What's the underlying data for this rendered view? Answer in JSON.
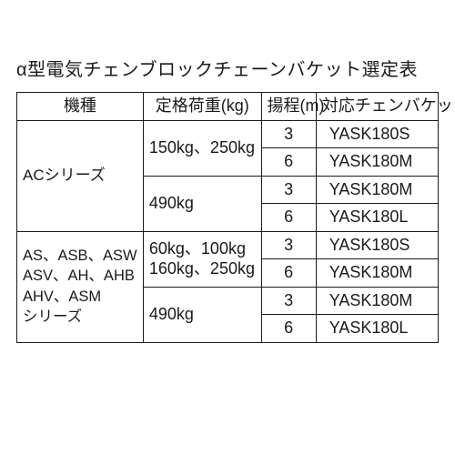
{
  "title": "α型電気チェンブロックチェーンバケット選定表",
  "headers": {
    "model": "機種",
    "load": "定格荷重(kg)",
    "lift": "揚程(m)",
    "bucket": "対応チェンバケット"
  },
  "group1": {
    "model": "ACシリーズ",
    "load_a": "150kg、250kg",
    "load_b": "490kg",
    "rows": [
      {
        "lift": "3",
        "bucket": "YASK180S"
      },
      {
        "lift": "6",
        "bucket": "YASK180M"
      },
      {
        "lift": "3",
        "bucket": "YASK180M"
      },
      {
        "lift": "6",
        "bucket": "YASK180L"
      }
    ]
  },
  "group2": {
    "model_html": "AS、ASB、ASW<br>ASV、AH、AHB<br>AHV、ASM<br>シリーズ",
    "load_a_html": "60kg、100kg<br>160kg、250kg",
    "load_b": "490kg",
    "rows": [
      {
        "lift": "3",
        "bucket": "YASK180S"
      },
      {
        "lift": "6",
        "bucket": "YASK180M"
      },
      {
        "lift": "3",
        "bucket": "YASK180M"
      },
      {
        "lift": "6",
        "bucket": "YASK180L"
      }
    ]
  },
  "colors": {
    "text": "#1a1a1a",
    "border": "#1a1a1a",
    "background": "#ffffff"
  },
  "font_sizes_pt": {
    "title": 15,
    "cell": 13.5,
    "cell_model_multi": 12.5
  }
}
